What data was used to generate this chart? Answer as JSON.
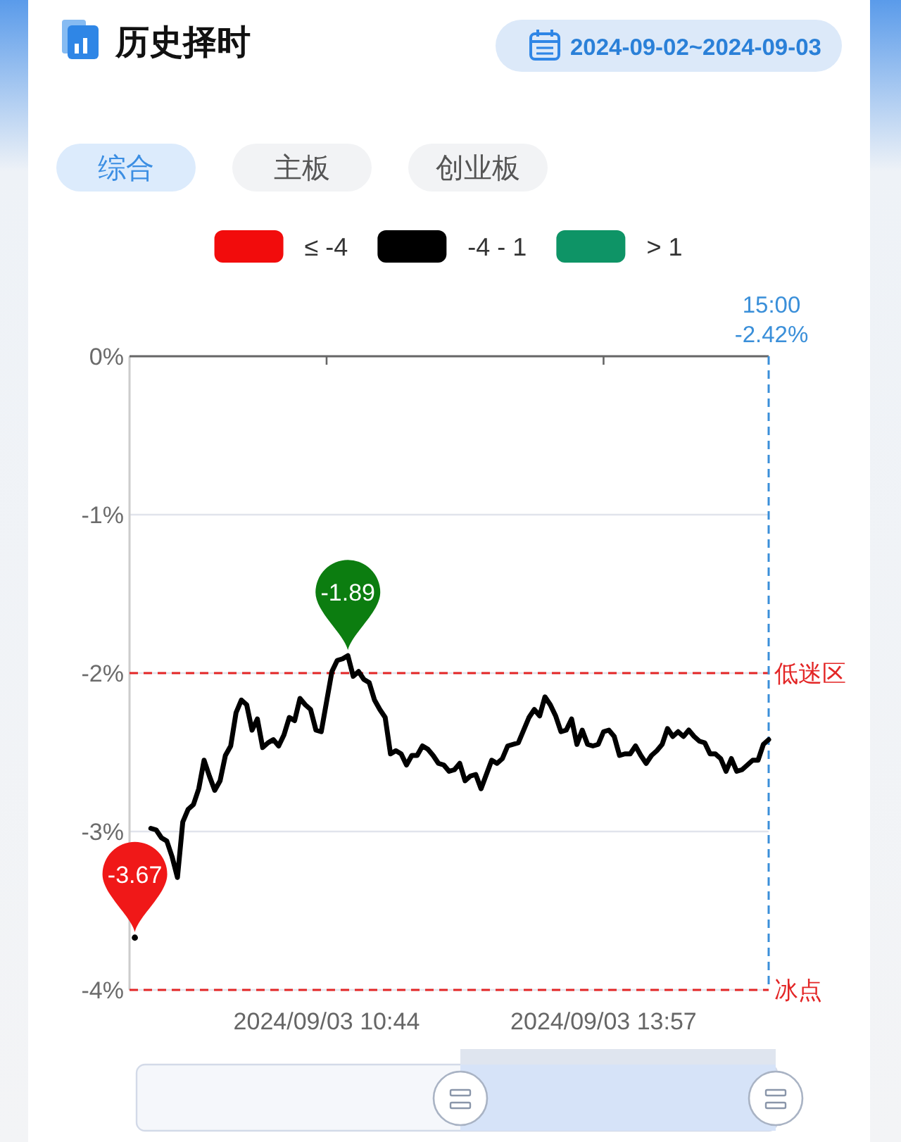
{
  "chart_data": {
    "type": "line",
    "title": "历史择时",
    "subtitle": "2024-09-02~2024-09-03",
    "annotations": [
      "综合",
      "主板",
      "创业板",
      "15:00",
      "-2.42%",
      {
        "text": "-1.89",
        "y": -1.89
      },
      {
        "text": "-3.67",
        "y": -3.67
      }
    ],
    "categories": [
      null,
      null,
      null,
      null,
      null,
      null,
      null,
      null,
      null,
      null,
      null,
      null,
      null,
      null,
      null,
      null,
      null,
      null,
      null,
      null,
      null,
      null,
      null,
      null,
      null,
      null,
      null,
      null,
      null,
      null,
      null,
      null,
      null,
      null,
      null,
      null,
      null,
      "2024/09/03 10:44",
      null,
      null,
      null,
      null,
      null,
      null,
      null,
      null,
      null,
      null,
      null,
      null,
      null,
      null,
      null,
      null,
      null,
      null,
      null,
      null,
      null,
      null,
      null,
      null,
      null,
      null,
      null,
      null,
      null,
      null,
      null,
      null,
      null,
      null,
      null,
      null,
      null,
      null,
      null,
      null,
      null,
      null,
      null,
      null,
      null,
      null,
      null,
      null,
      null,
      null,
      null,
      "2024/09/03 13:57",
      null,
      null,
      null,
      null,
      null,
      null,
      null,
      null,
      null,
      null,
      null,
      null,
      null,
      null,
      null,
      null,
      null,
      null,
      null,
      null,
      null,
      null,
      null,
      null,
      null,
      null,
      null,
      null,
      null,
      null,
      null
    ],
    "ylim": [
      -4,
      0
    ],
    "yticks": [
      {
        "value": -4,
        "label": "-4%"
      },
      {
        "value": -3,
        "label": "-3%"
      },
      {
        "value": -2,
        "label": "-2%"
      },
      {
        "value": -1,
        "label": "-1%"
      },
      {
        "value": 0,
        "label": "0%"
      }
    ],
    "grid": "y",
    "legend": "top",
    "ref_lines": [
      {
        "axis": "y",
        "value": -2,
        "label": "低迷区",
        "color": "#e32626",
        "line_style": "dashed"
      },
      {
        "axis": "y",
        "value": -4,
        "label": "冰点",
        "color": "#e32626",
        "line_style": "dashed"
      }
    ],
    "series": [
      {
        "name": "≤ -4",
        "color": "#f20c0c",
        "values": [
          null,
          null,
          null,
          null,
          null,
          null,
          null,
          null,
          null,
          null,
          null,
          null,
          null,
          null,
          null,
          null,
          null,
          null,
          null,
          null,
          null,
          null,
          null,
          null,
          null,
          null,
          null,
          null,
          null,
          null,
          null,
          null,
          null,
          null,
          null,
          null,
          null,
          null,
          null,
          null,
          null,
          null,
          null,
          null,
          null,
          null,
          null,
          null,
          null,
          null,
          null,
          null,
          null,
          null,
          null,
          null,
          null,
          null,
          null,
          null,
          null,
          null,
          null,
          null,
          null,
          null,
          null,
          null,
          null,
          null,
          null,
          null,
          null,
          null,
          null,
          null,
          null,
          null,
          null,
          null,
          null,
          null,
          null,
          null,
          null,
          null,
          null,
          null,
          null,
          null,
          null,
          null,
          null,
          null,
          null,
          null,
          null,
          null,
          null,
          null,
          null,
          null,
          null,
          null,
          null,
          null,
          null,
          null,
          null,
          null,
          null,
          null,
          null,
          null,
          null,
          null,
          null,
          null,
          null,
          null,
          null
        ]
      },
      {
        "name": "-4 - 1",
        "color": "#000000",
        "values": [
          null,
          -3.67,
          null,
          null,
          -2.98,
          -2.99,
          -3.04,
          -3.06,
          -3.16,
          -3.29,
          -2.94,
          -2.86,
          -2.83,
          -2.73,
          -2.55,
          -2.65,
          -2.74,
          -2.68,
          -2.52,
          -2.46,
          -2.25,
          -2.17,
          -2.2,
          -2.36,
          -2.29,
          -2.47,
          -2.44,
          -2.42,
          -2.46,
          -2.39,
          -2.28,
          -2.3,
          -2.16,
          -2.2,
          -2.23,
          -2.36,
          -2.37,
          -2.18,
          -1.99,
          -1.92,
          -1.91,
          -1.89,
          -2.02,
          -1.99,
          -2.04,
          -2.06,
          -2.17,
          -2.23,
          -2.28,
          -2.51,
          -2.49,
          -2.51,
          -2.58,
          -2.52,
          -2.52,
          -2.46,
          -2.48,
          -2.52,
          -2.57,
          -2.58,
          -2.62,
          -2.61,
          -2.57,
          -2.68,
          -2.65,
          -2.64,
          -2.73,
          -2.64,
          -2.55,
          -2.57,
          -2.54,
          -2.46,
          -2.45,
          -2.44,
          -2.36,
          -2.28,
          -2.23,
          -2.27,
          -2.15,
          -2.2,
          -2.27,
          -2.37,
          -2.36,
          -2.29,
          -2.45,
          -2.36,
          -2.45,
          -2.46,
          -2.45,
          -2.37,
          -2.36,
          -2.4,
          -2.52,
          -2.51,
          -2.51,
          -2.46,
          -2.52,
          -2.57,
          -2.52,
          -2.49,
          -2.45,
          -2.35,
          -2.4,
          -2.37,
          -2.4,
          -2.36,
          -2.4,
          -2.43,
          -2.44,
          -2.51,
          -2.51,
          -2.54,
          -2.62,
          -2.54,
          -2.62,
          -2.61,
          -2.58,
          -2.55,
          -2.55,
          -2.45,
          -2.42
        ]
      },
      {
        "name": "> 1",
        "color": "#0e9466",
        "values": [
          null,
          null,
          null,
          null,
          null,
          null,
          null,
          null,
          null,
          null,
          null,
          null,
          null,
          null,
          null,
          null,
          null,
          null,
          null,
          null,
          null,
          null,
          null,
          null,
          null,
          null,
          null,
          null,
          null,
          null,
          null,
          null,
          null,
          null,
          null,
          null,
          null,
          null,
          null,
          null,
          null,
          null,
          null,
          null,
          null,
          null,
          null,
          null,
          null,
          null,
          null,
          null,
          null,
          null,
          null,
          null,
          null,
          null,
          null,
          null,
          null,
          null,
          null,
          null,
          null,
          null,
          null,
          null,
          null,
          null,
          null,
          null,
          null,
          null,
          null,
          null,
          null,
          null,
          null,
          null,
          null,
          null,
          null,
          null,
          null,
          null,
          null,
          null,
          null,
          null,
          null,
          null,
          null,
          null,
          null,
          null,
          null,
          null,
          null,
          null,
          null,
          null,
          null,
          null,
          null,
          null,
          null,
          null,
          null,
          null,
          null,
          null,
          null,
          null,
          null,
          null,
          null,
          null,
          null,
          null,
          null
        ]
      }
    ]
  }
}
